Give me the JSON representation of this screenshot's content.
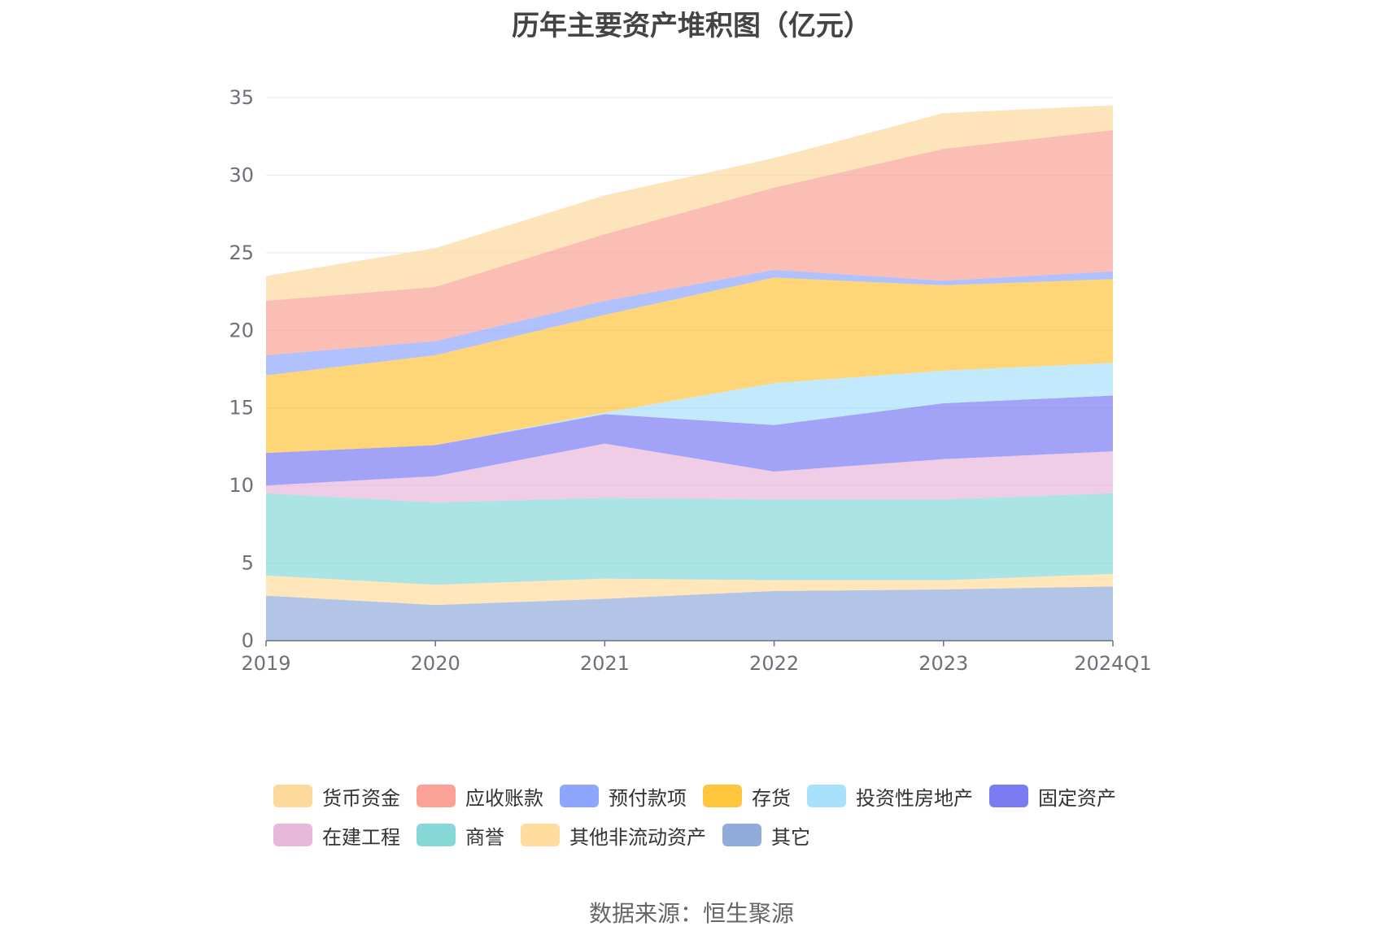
{
  "chart_data": {
    "type": "area",
    "stacked": true,
    "title": "历年主要资产堆积图（亿元）",
    "source": "数据来源：恒生聚源",
    "x": [
      "2019",
      "2020",
      "2021",
      "2022",
      "2023",
      "2024Q1"
    ],
    "ylim": [
      0,
      35
    ],
    "yticks": [
      0,
      5,
      10,
      15,
      20,
      25,
      30,
      35
    ],
    "grid": true,
    "legend_position": "bottom",
    "series": [
      {
        "name": "其它",
        "color": "#91acdc",
        "values": [
          2.9,
          2.3,
          2.7,
          3.2,
          3.3,
          3.5
        ]
      },
      {
        "name": "其他非流动资产",
        "color": "#ffdc9e",
        "values": [
          1.3,
          1.3,
          1.3,
          0.7,
          0.6,
          0.8
        ]
      },
      {
        "name": "商誉",
        "color": "#86d8d8",
        "values": [
          5.3,
          5.3,
          5.2,
          5.2,
          5.2,
          5.2
        ]
      },
      {
        "name": "在建工程",
        "color": "#e8b8db",
        "values": [
          0.5,
          1.7,
          3.5,
          1.8,
          2.6,
          2.7
        ]
      },
      {
        "name": "固定资产",
        "color": "#7b7cf2",
        "values": [
          2.1,
          2.0,
          1.9,
          3.0,
          3.6,
          3.6
        ]
      },
      {
        "name": "投资性房地产",
        "color": "#a9e1fb",
        "values": [
          0.0,
          0.0,
          0.1,
          2.7,
          2.1,
          2.1
        ]
      },
      {
        "name": "存货",
        "color": "#ffc53d",
        "values": [
          5.0,
          5.8,
          6.3,
          6.8,
          5.5,
          5.4
        ]
      },
      {
        "name": "预付款项",
        "color": "#8ea7fd",
        "values": [
          1.3,
          0.9,
          0.9,
          0.5,
          0.3,
          0.5
        ]
      },
      {
        "name": "应收账款",
        "color": "#faa295",
        "values": [
          3.5,
          3.5,
          4.3,
          5.3,
          8.5,
          9.1
        ]
      },
      {
        "name": "货币资金",
        "color": "#fdd99c",
        "values": [
          1.6,
          2.5,
          2.5,
          1.9,
          2.3,
          1.6
        ]
      }
    ],
    "legend_order": [
      "货币资金",
      "应收账款",
      "预付款项",
      "存货",
      "投资性房地产",
      "固定资产",
      "在建工程",
      "商誉",
      "其他非流动资产",
      "其它"
    ]
  }
}
